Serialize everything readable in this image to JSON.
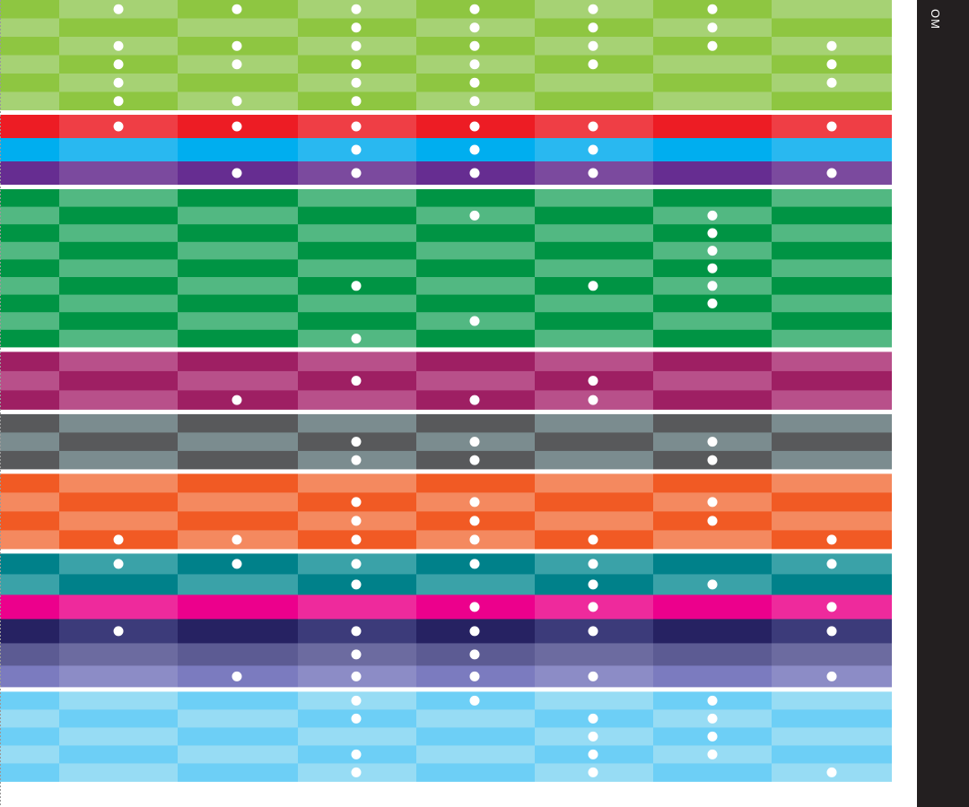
{
  "page": {
    "side_label": "OM"
  },
  "chart_data": {
    "type": "heatmap",
    "title": "",
    "xlabel": "",
    "ylabel": "",
    "columns": 8,
    "colors": {
      "lime": [
        "#8ec641",
        "#a6d274"
      ],
      "red": [
        "#ed1c24",
        "#ef3e45"
      ],
      "sky": [
        "#00aeef",
        "#29b8f0"
      ],
      "purple": [
        "#662d91",
        "#7b4a9e"
      ],
      "green": [
        "#009444",
        "#52b882"
      ],
      "plum": [
        "#9e1f63",
        "#b8508a"
      ],
      "slate": [
        "#58595b",
        "#7b8c8f"
      ],
      "orange": [
        "#f15a24",
        "#f4895f"
      ],
      "teal": [
        "#00818a",
        "#3aa2a8"
      ],
      "magenta": [
        "#ec008c",
        "#ee2a9c"
      ],
      "navy": [
        "#262262",
        "#3c3b7a"
      ],
      "indigo": [
        "#5c5b93",
        "#6c6ba0"
      ],
      "lavender": [
        "#7b7bbf",
        "#8c8cc6"
      ],
      "light_blue": [
        "#6dcff6",
        "#97dcf4"
      ],
      "separator": "#ffffff",
      "dot": "#ffffff",
      "side_bar": "#231f20"
    },
    "groups": [
      {
        "palette": "lime",
        "rows": [
          [
            0,
            1,
            1,
            1,
            1,
            1,
            1,
            0
          ],
          [
            0,
            0,
            0,
            1,
            1,
            1,
            1,
            0
          ],
          [
            0,
            1,
            1,
            1,
            1,
            1,
            1,
            1
          ],
          [
            0,
            1,
            1,
            1,
            1,
            1,
            0,
            1
          ],
          [
            0,
            1,
            0,
            1,
            1,
            0,
            0,
            1
          ],
          [
            0,
            1,
            1,
            1,
            1,
            0,
            0,
            0
          ]
        ]
      },
      {
        "palette": "red",
        "rows": [
          [
            0,
            1,
            1,
            1,
            1,
            1,
            0,
            1
          ]
        ]
      },
      {
        "palette": "sky",
        "rows": [
          [
            0,
            0,
            0,
            1,
            1,
            1,
            0,
            0
          ]
        ],
        "gap_before": false
      },
      {
        "palette": "purple",
        "rows": [
          [
            0,
            0,
            1,
            1,
            1,
            1,
            0,
            1
          ]
        ],
        "gap_before": false
      },
      {
        "palette": "green",
        "rows": [
          [
            0,
            0,
            0,
            0,
            0,
            0,
            0,
            0
          ],
          [
            0,
            0,
            0,
            0,
            1,
            0,
            1,
            0
          ],
          [
            0,
            0,
            0,
            0,
            0,
            0,
            1,
            0
          ],
          [
            0,
            0,
            0,
            0,
            0,
            0,
            1,
            0
          ],
          [
            0,
            0,
            0,
            0,
            0,
            0,
            1,
            0
          ],
          [
            0,
            0,
            0,
            1,
            0,
            1,
            1,
            0
          ],
          [
            0,
            0,
            0,
            0,
            0,
            0,
            1,
            0
          ],
          [
            0,
            0,
            0,
            0,
            1,
            0,
            0,
            0
          ],
          [
            0,
            0,
            0,
            1,
            0,
            0,
            0,
            0
          ]
        ]
      },
      {
        "palette": "plum",
        "rows": [
          [
            0,
            0,
            0,
            0,
            0,
            0,
            0,
            0
          ],
          [
            0,
            0,
            0,
            1,
            0,
            1,
            0,
            0
          ],
          [
            0,
            0,
            1,
            0,
            1,
            1,
            0,
            0
          ]
        ]
      },
      {
        "palette": "slate",
        "rows": [
          [
            0,
            0,
            0,
            0,
            0,
            0,
            0,
            0
          ],
          [
            0,
            0,
            0,
            1,
            1,
            0,
            1,
            0
          ],
          [
            0,
            0,
            0,
            1,
            1,
            0,
            1,
            0
          ]
        ]
      },
      {
        "palette": "orange",
        "rows": [
          [
            0,
            0,
            0,
            0,
            0,
            0,
            0,
            0
          ],
          [
            0,
            0,
            0,
            1,
            1,
            0,
            1,
            0
          ],
          [
            0,
            0,
            0,
            1,
            1,
            0,
            1,
            0
          ],
          [
            0,
            1,
            1,
            1,
            1,
            1,
            0,
            1
          ]
        ]
      },
      {
        "palette": "teal",
        "rows": [
          [
            0,
            1,
            1,
            1,
            1,
            1,
            0,
            1
          ],
          [
            0,
            0,
            0,
            1,
            0,
            1,
            1,
            0
          ]
        ]
      },
      {
        "palette": "magenta",
        "rows": [
          [
            0,
            0,
            0,
            0,
            1,
            1,
            0,
            1
          ]
        ],
        "gap_before": false
      },
      {
        "palette": "navy",
        "rows": [
          [
            0,
            1,
            0,
            1,
            1,
            1,
            0,
            1
          ]
        ],
        "gap_before": false
      },
      {
        "palette": "indigo",
        "rows": [
          [
            0,
            0,
            0,
            1,
            1,
            0,
            0,
            0
          ]
        ],
        "gap_before": false
      },
      {
        "palette": "lavender",
        "rows": [
          [
            0,
            0,
            1,
            1,
            1,
            1,
            0,
            1
          ]
        ],
        "gap_before": false
      },
      {
        "palette": "light_blue",
        "rows": [
          [
            0,
            0,
            0,
            1,
            1,
            0,
            1,
            0
          ],
          [
            0,
            0,
            0,
            1,
            0,
            1,
            1,
            0
          ],
          [
            0,
            0,
            0,
            0,
            0,
            1,
            1,
            0
          ],
          [
            0,
            0,
            0,
            1,
            0,
            1,
            1,
            0
          ],
          [
            0,
            0,
            0,
            1,
            0,
            1,
            0,
            1
          ]
        ]
      }
    ]
  }
}
